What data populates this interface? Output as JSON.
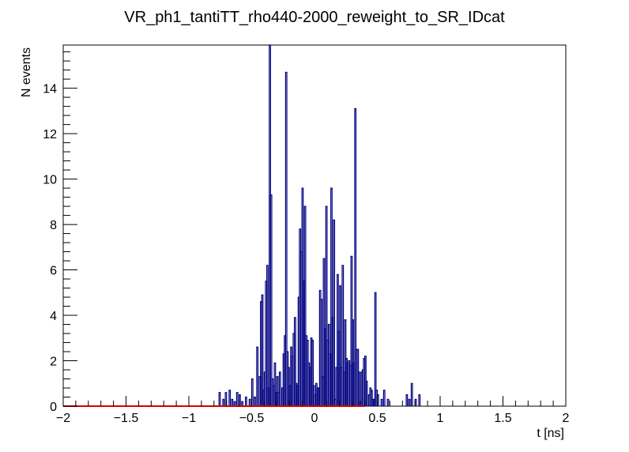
{
  "chart_data": {
    "type": "histogram",
    "title": "VR_ph1_tantiTT_rho440-2000_reweight_to_SR_IDcat",
    "xlabel": "t [ns]",
    "ylabel": "N events",
    "xlim": [
      -2,
      2
    ],
    "ylim": [
      0,
      15.9
    ],
    "xticks": [
      -2,
      -1.5,
      -1,
      -0.5,
      0,
      0.5,
      1,
      1.5,
      2
    ],
    "xtick_labels": [
      "−2",
      "−1.5",
      "−1",
      "−0.5",
      "0",
      "0.5",
      "1",
      "1.5",
      "2"
    ],
    "yticks": [
      0,
      2,
      4,
      6,
      8,
      10,
      12,
      14
    ],
    "ytick_labels": [
      "0",
      "2",
      "4",
      "6",
      "8",
      "10",
      "12",
      "14"
    ],
    "grid": false,
    "colors": {
      "histogram": "#000080",
      "baseline": "#dd0000",
      "frame": "#000000"
    },
    "series": [
      {
        "points": [
          [
            -0.76,
            0.6
          ],
          [
            -0.73,
            0.3
          ],
          [
            -0.71,
            0.6
          ],
          [
            -0.68,
            0.7
          ],
          [
            -0.66,
            0.3
          ],
          [
            -0.64,
            0.2
          ],
          [
            -0.62,
            0.6
          ],
          [
            -0.6,
            0.5
          ],
          [
            -0.58,
            0.2
          ],
          [
            -0.55,
            0.4
          ],
          [
            -0.52,
            0.3
          ],
          [
            -0.5,
            1.2
          ],
          [
            -0.48,
            0.4
          ],
          [
            -0.46,
            2.6
          ],
          [
            -0.44,
            1.3
          ],
          [
            -0.43,
            4.6
          ],
          [
            -0.42,
            4.9
          ],
          [
            -0.41,
            0.7
          ],
          [
            -0.4,
            1.5
          ],
          [
            -0.39,
            5.5
          ],
          [
            -0.38,
            6.2
          ],
          [
            -0.37,
            0.8
          ],
          [
            -0.36,
            15.9
          ],
          [
            -0.35,
            9.3
          ],
          [
            -0.34,
            1.2
          ],
          [
            -0.33,
            0.9
          ],
          [
            -0.32,
            1.9
          ],
          [
            -0.31,
            0.6
          ],
          [
            -0.3,
            1.3
          ],
          [
            -0.29,
            0.6
          ],
          [
            -0.28,
            1.5
          ],
          [
            -0.26,
            0.8
          ],
          [
            -0.25,
            2.3
          ],
          [
            -0.24,
            3.1
          ],
          [
            -0.23,
            14.7
          ],
          [
            -0.22,
            2.4
          ],
          [
            -0.21,
            1.7
          ],
          [
            -0.2,
            0.9
          ],
          [
            -0.19,
            2.6
          ],
          [
            -0.18,
            2.2
          ],
          [
            -0.17,
            3.2
          ],
          [
            -0.16,
            3.9
          ],
          [
            -0.15,
            1.0
          ],
          [
            -0.14,
            0.9
          ],
          [
            -0.13,
            4.8
          ],
          [
            -0.12,
            7.8
          ],
          [
            -0.11,
            6.8
          ],
          [
            -0.1,
            9.6
          ],
          [
            -0.09,
            5.5
          ],
          [
            -0.08,
            8.8
          ],
          [
            -0.07,
            3.1
          ],
          [
            -0.06,
            2.9
          ],
          [
            -0.05,
            1.9
          ],
          [
            -0.04,
            1.7
          ],
          [
            -0.03,
            3.0
          ],
          [
            -0.02,
            2.9
          ],
          [
            -0.01,
            0.9
          ],
          [
            0.0,
            0.5
          ],
          [
            0.01,
            1.0
          ],
          [
            0.02,
            0.8
          ],
          [
            0.03,
            0.8
          ],
          [
            0.04,
            5.1
          ],
          [
            0.05,
            4.7
          ],
          [
            0.06,
            1.3
          ],
          [
            0.07,
            6.5
          ],
          [
            0.08,
            3.4
          ],
          [
            0.09,
            8.8
          ],
          [
            0.1,
            2.9
          ],
          [
            0.11,
            3.6
          ],
          [
            0.12,
            2.3
          ],
          [
            0.13,
            9.6
          ],
          [
            0.14,
            3.9
          ],
          [
            0.15,
            8.2
          ],
          [
            0.16,
            0.3
          ],
          [
            0.17,
            1.7
          ],
          [
            0.18,
            5.8
          ],
          [
            0.19,
            3.3
          ],
          [
            0.2,
            5.3
          ],
          [
            0.21,
            1.7
          ],
          [
            0.22,
            6.2
          ],
          [
            0.23,
            1.5
          ],
          [
            0.24,
            3.8
          ],
          [
            0.25,
            2.1
          ],
          [
            0.26,
            1.9
          ],
          [
            0.27,
            2.0
          ],
          [
            0.28,
            1.8
          ],
          [
            0.29,
            6.6
          ],
          [
            0.3,
            3.8
          ],
          [
            0.31,
            1.9
          ],
          [
            0.32,
            13.1
          ],
          [
            0.33,
            2.5
          ],
          [
            0.34,
            2.5
          ],
          [
            0.35,
            1.5
          ],
          [
            0.36,
            0.2
          ],
          [
            0.37,
            1.5
          ],
          [
            0.38,
            1.6
          ],
          [
            0.39,
            2.1
          ],
          [
            0.4,
            2.2
          ],
          [
            0.41,
            1.1
          ],
          [
            0.43,
            0.5
          ],
          [
            0.44,
            0.8
          ],
          [
            0.45,
            0.7
          ],
          [
            0.46,
            0.3
          ],
          [
            0.47,
            0.3
          ],
          [
            0.48,
            5.0
          ],
          [
            0.49,
            0.7
          ],
          [
            0.5,
            0.5
          ],
          [
            0.53,
            0.3
          ],
          [
            0.55,
            0.7
          ],
          [
            0.58,
            0.3
          ],
          [
            0.73,
            0.5
          ],
          [
            0.75,
            0.3
          ],
          [
            0.77,
            1.0
          ],
          [
            0.8,
            0.3
          ],
          [
            0.83,
            0.5
          ]
        ]
      }
    ],
    "baseline": {
      "x": [
        -2,
        0.4
      ],
      "y": 0
    }
  }
}
